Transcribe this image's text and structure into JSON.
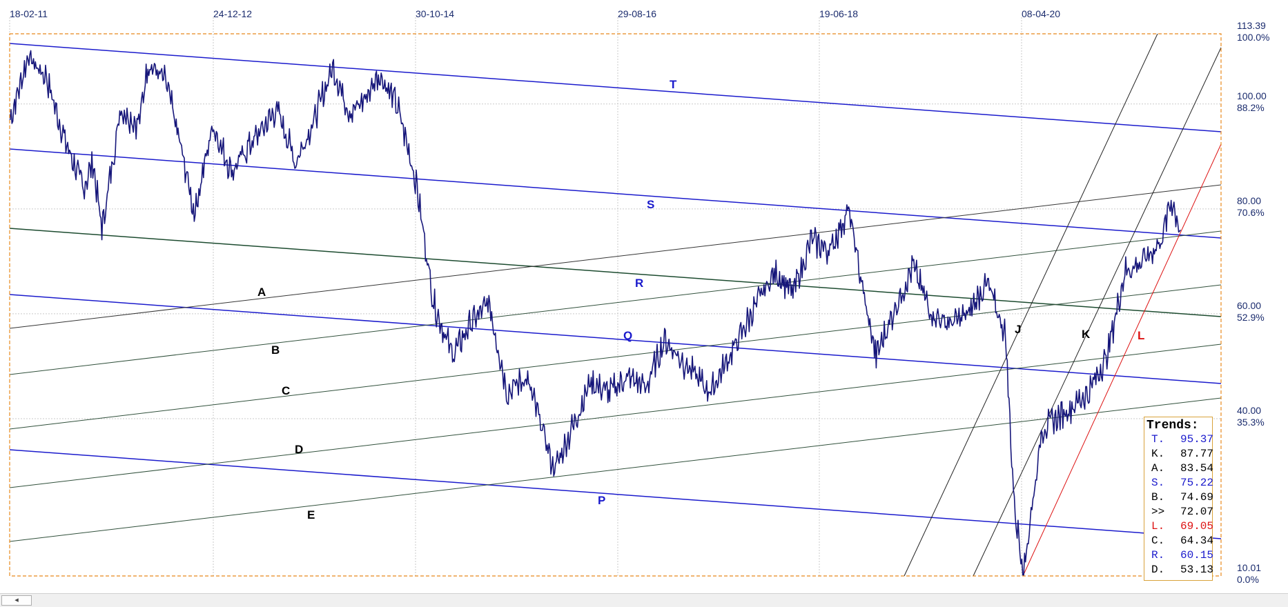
{
  "chart_data": {
    "type": "line",
    "x_ticks": [
      "18-02-11",
      "24-12-12",
      "30-10-14",
      "29-08-16",
      "19-06-18",
      "08-04-20"
    ],
    "y_ticks": [
      {
        "value": "113.39",
        "pct": "100.0%"
      },
      {
        "value": "100.00",
        "pct": "88.2%"
      },
      {
        "value": "80.00",
        "pct": "70.6%"
      },
      {
        "value": "60.00",
        "pct": "52.9%"
      },
      {
        "value": "40.00",
        "pct": "35.3%"
      },
      {
        "value": "10.01",
        "pct": "0.0%"
      }
    ],
    "ylim": [
      10.01,
      113.39
    ],
    "grid": true,
    "trend_line_labels": [
      "T",
      "S",
      "R",
      "Q",
      "P",
      "A",
      "B",
      "C",
      "D",
      "E",
      "J",
      "K",
      "L"
    ],
    "trends": {
      "title": "Trends:",
      "rows": [
        {
          "code": "T.",
          "value": "95.37",
          "color": "#1a1acc"
        },
        {
          "code": "K.",
          "value": "87.77",
          "color": "#000000"
        },
        {
          "code": "A.",
          "value": "83.54",
          "color": "#000000"
        },
        {
          "code": "S.",
          "value": "75.22",
          "color": "#1a1acc"
        },
        {
          "code": "B.",
          "value": "74.69",
          "color": "#000000"
        },
        {
          "code": ">>",
          "value": "72.07",
          "color": "#000000"
        },
        {
          "code": "L.",
          "value": "69.05",
          "color": "#dd1111"
        },
        {
          "code": "C.",
          "value": "64.34",
          "color": "#000000"
        },
        {
          "code": "R.",
          "value": "60.15",
          "color": "#1a1acc"
        },
        {
          "code": "D.",
          "value": "53.13",
          "color": "#000000"
        }
      ]
    },
    "price_series": [
      [
        "2011-02",
        97.0
      ],
      [
        "2011-04",
        109.0
      ],
      [
        "2011-06",
        105.0
      ],
      [
        "2011-08",
        93.0
      ],
      [
        "2011-10",
        84.0
      ],
      [
        "2011-11",
        89.0
      ],
      [
        "2011-12",
        76.0
      ],
      [
        "2012-02",
        99.0
      ],
      [
        "2012-04",
        96.0
      ],
      [
        "2012-05",
        108.0
      ],
      [
        "2012-07",
        104.0
      ],
      [
        "2012-09",
        88.0
      ],
      [
        "2012-10",
        79.0
      ],
      [
        "2012-12",
        96.0
      ],
      [
        "2013-02",
        87.0
      ],
      [
        "2013-04",
        92.0
      ],
      [
        "2013-07",
        99.0
      ],
      [
        "2013-09",
        89.0
      ],
      [
        "2013-11",
        97.0
      ],
      [
        "2014-01",
        107.0
      ],
      [
        "2014-03",
        98.0
      ],
      [
        "2014-05",
        102.0
      ],
      [
        "2014-06",
        106.0
      ],
      [
        "2014-08",
        100.0
      ],
      [
        "2014-10",
        86.0
      ],
      [
        "2014-12",
        62.0
      ],
      [
        "2015-02",
        52.0
      ],
      [
        "2015-04",
        58.0
      ],
      [
        "2015-06",
        62.0
      ],
      [
        "2015-08",
        45.0
      ],
      [
        "2015-10",
        48.0
      ],
      [
        "2015-12",
        37.0
      ],
      [
        "2016-01",
        30.0
      ],
      [
        "2016-03",
        38.0
      ],
      [
        "2016-05",
        47.0
      ],
      [
        "2016-07",
        45.0
      ],
      [
        "2016-09",
        48.0
      ],
      [
        "2016-11",
        46.0
      ],
      [
        "2017-01",
        55.0
      ],
      [
        "2017-03",
        51.0
      ],
      [
        "2017-06",
        45.0
      ],
      [
        "2017-09",
        55.0
      ],
      [
        "2017-11",
        62.0
      ],
      [
        "2018-01",
        68.0
      ],
      [
        "2018-03",
        64.0
      ],
      [
        "2018-05",
        74.0
      ],
      [
        "2018-07",
        72.0
      ],
      [
        "2018-09",
        80.0
      ],
      [
        "2018-11",
        60.0
      ],
      [
        "2018-12",
        52.0
      ],
      [
        "2019-02",
        61.0
      ],
      [
        "2019-04",
        69.0
      ],
      [
        "2019-06",
        60.0
      ],
      [
        "2019-08",
        58.0
      ],
      [
        "2019-10",
        60.0
      ],
      [
        "2019-12",
        66.0
      ],
      [
        "2020-02",
        56.0
      ],
      [
        "2020-03",
        23.0
      ],
      [
        "2020-04",
        11.0
      ],
      [
        "2020-06",
        38.0
      ],
      [
        "2020-09",
        42.0
      ],
      [
        "2020-11",
        45.0
      ],
      [
        "2021-01",
        52.0
      ],
      [
        "2021-03",
        68.0
      ],
      [
        "2021-05",
        70.0
      ],
      [
        "2021-07",
        74.0
      ],
      [
        "2021-08",
        82.0
      ],
      [
        "2021-09",
        76.0
      ]
    ]
  }
}
